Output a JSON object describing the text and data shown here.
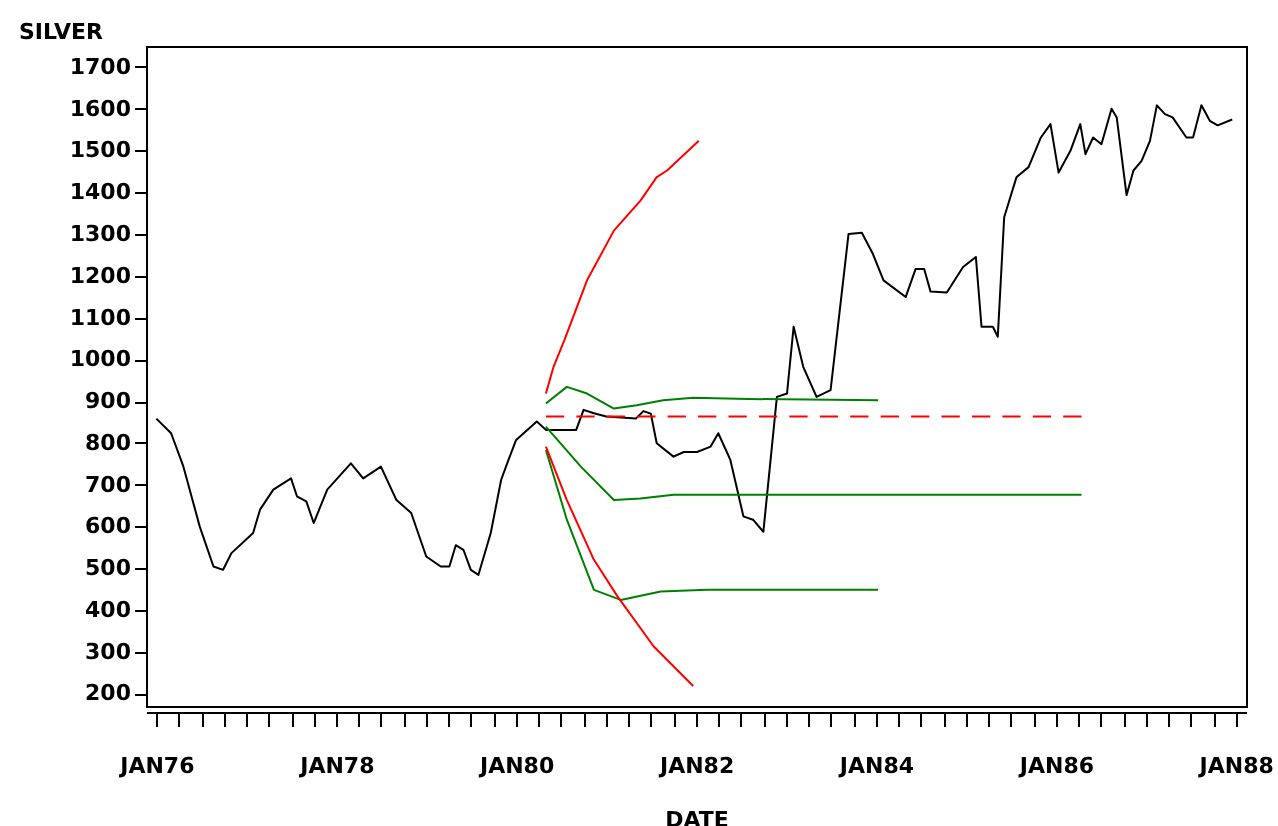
{
  "chart_data": {
    "type": "line",
    "xlabel": "DATE",
    "ylabel": "SILVER",
    "xlim": [
      "1975-11-20",
      "1988-02-12"
    ],
    "ylim": [
      170,
      1750
    ],
    "xticks": [
      {
        "value": "1976-01-01",
        "label": "JAN76"
      },
      {
        "value": "1976-04-01",
        "label": null
      },
      {
        "value": "1976-07-01",
        "label": null
      },
      {
        "value": "1976-10-01",
        "label": null
      },
      {
        "value": "1977-01-01",
        "label": null
      },
      {
        "value": "1977-04-01",
        "label": null
      },
      {
        "value": "1977-07-01",
        "label": null
      },
      {
        "value": "1977-10-01",
        "label": null
      },
      {
        "value": "1978-01-01",
        "label": "JAN78"
      },
      {
        "value": "1978-04-01",
        "label": null
      },
      {
        "value": "1978-07-01",
        "label": null
      },
      {
        "value": "1978-10-01",
        "label": null
      },
      {
        "value": "1979-01-01",
        "label": null
      },
      {
        "value": "1979-04-01",
        "label": null
      },
      {
        "value": "1979-07-01",
        "label": null
      },
      {
        "value": "1979-10-01",
        "label": null
      },
      {
        "value": "1980-01-01",
        "label": "JAN80"
      },
      {
        "value": "1980-04-01",
        "label": null
      },
      {
        "value": "1980-07-01",
        "label": null
      },
      {
        "value": "1980-10-01",
        "label": null
      },
      {
        "value": "1981-01-01",
        "label": null
      },
      {
        "value": "1981-04-01",
        "label": null
      },
      {
        "value": "1981-07-01",
        "label": null
      },
      {
        "value": "1981-10-01",
        "label": null
      },
      {
        "value": "1982-01-01",
        "label": "JAN82"
      },
      {
        "value": "1982-04-01",
        "label": null
      },
      {
        "value": "1982-07-01",
        "label": null
      },
      {
        "value": "1982-10-01",
        "label": null
      },
      {
        "value": "1983-01-01",
        "label": null
      },
      {
        "value": "1983-04-01",
        "label": null
      },
      {
        "value": "1983-07-01",
        "label": null
      },
      {
        "value": "1983-10-01",
        "label": null
      },
      {
        "value": "1984-01-01",
        "label": "JAN84"
      },
      {
        "value": "1984-04-01",
        "label": null
      },
      {
        "value": "1984-07-01",
        "label": null
      },
      {
        "value": "1984-10-01",
        "label": null
      },
      {
        "value": "1985-01-01",
        "label": null
      },
      {
        "value": "1985-04-01",
        "label": null
      },
      {
        "value": "1985-07-01",
        "label": null
      },
      {
        "value": "1985-10-01",
        "label": null
      },
      {
        "value": "1986-01-01",
        "label": "JAN86"
      },
      {
        "value": "1986-04-01",
        "label": null
      },
      {
        "value": "1986-07-01",
        "label": null
      },
      {
        "value": "1986-10-01",
        "label": null
      },
      {
        "value": "1987-01-01",
        "label": null
      },
      {
        "value": "1987-04-01",
        "label": null
      },
      {
        "value": "1987-07-01",
        "label": null
      },
      {
        "value": "1987-10-01",
        "label": null
      },
      {
        "value": "1988-01-01",
        "label": "JAN88"
      }
    ],
    "yticks": [
      200,
      300,
      400,
      500,
      600,
      700,
      800,
      900,
      1000,
      1100,
      1200,
      1300,
      1400,
      1500,
      1600,
      1700
    ],
    "series": [
      {
        "color": "#000000",
        "line_style": "solid",
        "x": [
          "1976-01-01",
          "1976-03-01",
          "1976-04-20",
          "1976-06-25",
          "1976-08-20",
          "1976-09-28",
          "1976-11-01",
          "1977-01-28",
          "1977-02-25",
          "1977-04-20",
          "1977-07-01",
          "1977-07-25",
          "1977-09-01",
          "1977-10-01",
          "1977-11-25",
          "1978-03-01",
          "1978-04-20",
          "1978-07-01",
          "1978-09-01",
          "1978-11-01",
          "1979-01-01",
          "1979-03-01",
          "1979-04-05",
          "1979-05-01",
          "1979-06-01",
          "1979-07-01",
          "1979-08-01",
          "1979-09-20",
          "1979-11-01",
          "1979-12-01",
          "1980-01-01",
          "1980-03-25",
          "1980-05-01",
          "1980-07-01",
          "1980-09-01",
          "1980-10-01",
          "1980-11-12",
          "1981-01-01",
          "1981-05-01",
          "1981-06-01",
          "1981-07-01",
          "1981-07-25",
          "1981-10-01",
          "1981-11-12",
          "1982-01-05",
          "1982-03-01",
          "1982-04-01",
          "1982-05-20",
          "1982-07-12",
          "1982-08-20",
          "1982-10-01",
          "1982-11-25",
          "1983-01-05",
          "1983-02-01",
          "1983-03-12",
          "1983-05-05",
          "1983-07-01",
          "1983-09-12",
          "1983-11-05",
          "1983-12-20",
          "1984-02-01",
          "1984-05-01",
          "1984-06-10",
          "1984-07-15",
          "1984-08-10",
          "1984-10-15",
          "1984-12-20",
          "1985-02-10",
          "1985-03-05",
          "1985-04-20",
          "1985-05-10",
          "1985-06-05",
          "1985-07-25",
          "1985-09-12",
          "1985-11-01",
          "1985-12-10",
          "1986-01-12",
          "1986-03-01",
          "1986-04-10",
          "1986-05-01",
          "1986-06-01",
          "1986-07-05",
          "1986-08-15",
          "1986-09-05",
          "1986-10-15",
          "1986-11-12",
          "1986-12-15",
          "1987-01-18",
          "1987-02-15",
          "1987-03-20",
          "1987-04-20",
          "1987-06-15",
          "1987-07-12",
          "1987-08-15",
          "1987-09-18",
          "1987-10-20",
          "1987-12-18"
        ],
        "values": [
          858,
          823,
          743,
          600,
          504,
          496,
          536,
          584,
          640,
          688,
          715,
          672,
          660,
          608,
          688,
          751,
          715,
          743,
          664,
          632,
          528,
          504,
          504,
          555,
          544,
          496,
          484,
          584,
          711,
          759,
          807,
          851,
          831,
          831,
          831,
          879,
          871,
          863,
          858,
          876,
          870,
          799,
          767,
          778,
          778,
          791,
          823,
          759,
          624,
          616,
          587,
          910,
          918,
          1078,
          982,
          910,
          926,
          1300,
          1303,
          1252,
          1189,
          1149,
          1216,
          1216,
          1162,
          1160,
          1221,
          1245,
          1078,
          1078,
          1054,
          1340,
          1436,
          1460,
          1531,
          1563,
          1447,
          1499,
          1563,
          1491,
          1531,
          1515,
          1600,
          1579,
          1393,
          1452,
          1475,
          1523,
          1608,
          1587,
          1579,
          1531,
          1531,
          1608,
          1571,
          1560,
          1574
        ]
      },
      {
        "color": "#ff0000",
        "line_style": "dashed",
        "x": [
          "1980-05-01",
          "1986-04-15"
        ],
        "values": [
          863,
          863
        ]
      },
      {
        "color": "#008000",
        "line_style": "solid",
        "x": [
          "1980-05-01",
          "1980-07-25",
          "1980-10-15",
          "1981-02-01",
          "1981-05-05",
          "1981-08-20",
          "1981-12-20",
          "1982-08-01",
          "1984-01-10"
        ],
        "values": [
          894,
          934,
          918,
          882,
          890,
          902,
          908,
          905,
          902
        ]
      },
      {
        "color": "#008000",
        "line_style": "solid",
        "x": [
          "1980-05-01",
          "1980-09-20",
          "1981-02-01",
          "1981-05-20",
          "1981-10-01",
          "1986-04-15"
        ],
        "values": [
          839,
          743,
          663,
          667,
          676,
          676
        ]
      },
      {
        "color": "#008000",
        "line_style": "solid",
        "x": [
          "1980-05-01",
          "1980-07-25",
          "1980-11-12",
          "1981-03-01",
          "1981-08-10",
          "1982-02-15",
          "1984-01-10"
        ],
        "values": [
          783,
          616,
          448,
          424,
          444,
          448,
          448
        ]
      },
      {
        "color": "#ff0000",
        "line_style": "solid",
        "x": [
          "1980-05-01",
          "1980-06-01",
          "1980-07-15",
          "1980-10-15",
          "1981-02-01",
          "1981-05-20",
          "1981-07-25",
          "1981-09-05",
          "1982-01-12"
        ],
        "values": [
          918,
          982,
          1046,
          1189,
          1308,
          1380,
          1436,
          1452,
          1523
        ]
      },
      {
        "color": "#ff0000",
        "line_style": "solid",
        "x": [
          "1980-05-01",
          "1980-07-25",
          "1980-11-12",
          "1981-02-15",
          "1981-07-12",
          "1981-12-20"
        ],
        "values": [
          791,
          663,
          520,
          433,
          313,
          218
        ]
      }
    ]
  }
}
